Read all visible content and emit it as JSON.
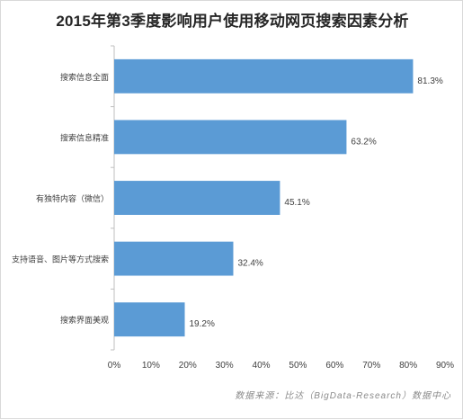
{
  "chart_data": {
    "type": "bar",
    "orientation": "horizontal",
    "title": "2015年第3季度影响用户使用移动网页搜索因素分析",
    "categories": [
      "搜索信息全面",
      "搜索信息精准",
      "有独特内容（微信）",
      "支持语音、图片等方式搜索",
      "搜索界面美观"
    ],
    "values": [
      81.3,
      63.2,
      45.1,
      32.4,
      19.2
    ],
    "value_labels": [
      "81.3%",
      "63.2%",
      "45.1%",
      "32.4%",
      "19.2%"
    ],
    "xlim": [
      0,
      90
    ],
    "x_ticks": [
      "0%",
      "10%",
      "20%",
      "30%",
      "40%",
      "50%",
      "60%",
      "70%",
      "80%",
      "90%"
    ],
    "grid": false,
    "bar_color": "#5b9bd5",
    "source": "数据来源：比达（BigData-Research）数据中心"
  }
}
